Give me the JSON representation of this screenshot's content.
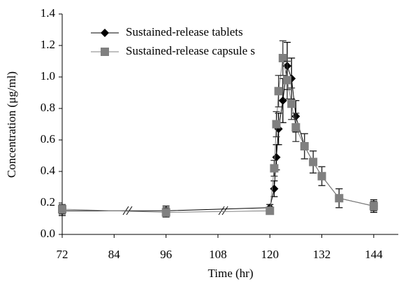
{
  "chart_data": {
    "type": "line",
    "x_label": "Time (hr)",
    "y_label": "Concentration (μg/ml)",
    "xlim": [
      72,
      150
    ],
    "xticks": [
      72,
      84,
      96,
      108,
      120,
      132,
      144
    ],
    "ylim": [
      0,
      1.4
    ],
    "yticks": [
      {
        "value": 0,
        "label": "0.0"
      },
      {
        "value": 0.2,
        "label": "0.2"
      },
      {
        "value": 0.4,
        "label": "0.4"
      },
      {
        "value": 0.6,
        "label": "0.6"
      },
      {
        "value": 0.8,
        "label": "0.8"
      },
      {
        "value": 1.0,
        "label": "1.0"
      },
      {
        "value": 1.2,
        "label": "1.2"
      },
      {
        "value": 1.4,
        "label": "1.4"
      }
    ],
    "legend": "upper left",
    "x": [
      72,
      96,
      120,
      121,
      121.5,
      122,
      123,
      124,
      125,
      126,
      128,
      130,
      132,
      136,
      144
    ],
    "series": [
      {
        "name": "Sustained-release tablets",
        "color": "#000000",
        "marker": "diamond",
        "values": [
          0.15,
          0.15,
          0.17,
          0.29,
          0.49,
          0.67,
          0.85,
          1.07,
          0.99,
          0.75,
          0.56,
          0.46,
          0.37,
          0.23,
          0.18
        ],
        "errors": [
          0.03,
          0.03,
          0.02,
          0.05,
          0.08,
          0.1,
          0.14,
          0.15,
          0.13,
          0.1,
          0.08,
          0.07,
          0.06,
          0.06,
          0.04
        ]
      },
      {
        "name": "Sustained-release capsule s",
        "color": "#808080",
        "marker": "square",
        "values": [
          0.16,
          0.14,
          0.15,
          0.42,
          0.7,
          0.91,
          1.12,
          0.98,
          0.83,
          0.68,
          0.56,
          0.46,
          0.37,
          0.23,
          0.18
        ],
        "errors": [
          0.03,
          0.03,
          0.02,
          0.05,
          0.08,
          0.1,
          0.11,
          0.12,
          0.1,
          0.09,
          0.08,
          0.07,
          0.06,
          0.06,
          0.03
        ]
      }
    ]
  }
}
